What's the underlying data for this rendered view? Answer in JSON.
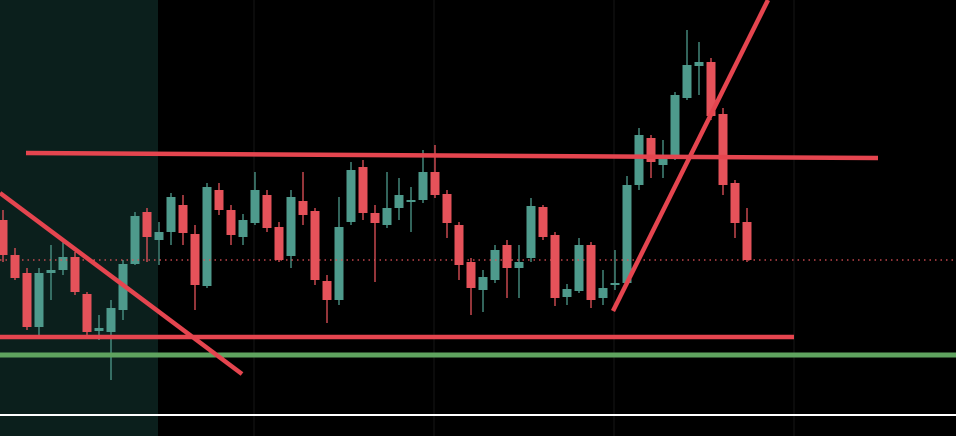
{
  "chart_data": {
    "type": "candlestick",
    "up_color": "#4e9a8c",
    "down_color": "#e5525a",
    "ylim": [
      0,
      436
    ],
    "open": [
      216,
      181,
      163,
      109,
      163,
      166,
      179,
      142,
      105,
      104,
      126,
      172,
      224,
      196,
      204,
      231,
      202,
      150,
      246,
      226,
      199,
      213,
      241,
      209,
      180,
      235,
      225,
      155,
      136,
      214,
      269,
      223,
      211,
      228,
      234,
      236,
      264,
      242,
      211,
      174,
      146,
      156,
      191,
      168,
      178,
      229,
      201,
      139,
      145,
      191,
      138,
      151,
      153,
      251,
      298,
      271,
      279,
      338,
      370,
      374,
      322,
      253,
      214
    ],
    "high": [
      226,
      188,
      168,
      168,
      191,
      198,
      184,
      144,
      121,
      136,
      176,
      224,
      228,
      214,
      243,
      241,
      211,
      253,
      253,
      231,
      222,
      264,
      246,
      214,
      246,
      264,
      228,
      161,
      239,
      274,
      276,
      231,
      264,
      258,
      249,
      286,
      291,
      246,
      214,
      178,
      166,
      191,
      196,
      191,
      238,
      231,
      204,
      152,
      198,
      194,
      166,
      186,
      260,
      308,
      301,
      296,
      344,
      406,
      394,
      378,
      328,
      256,
      228
    ],
    "low": [
      174,
      156,
      106,
      98,
      136,
      161,
      141,
      101,
      96,
      56,
      116,
      171,
      174,
      171,
      191,
      191,
      126,
      148,
      221,
      191,
      191,
      211,
      204,
      174,
      168,
      211,
      151,
      113,
      131,
      211,
      216,
      154,
      208,
      216,
      204,
      233,
      238,
      198,
      156,
      121,
      124,
      153,
      138,
      138,
      174,
      196,
      130,
      131,
      143,
      128,
      131,
      146,
      151,
      246,
      258,
      258,
      276,
      336,
      341,
      316,
      241,
      198,
      174
    ],
    "close": [
      181,
      158,
      109,
      163,
      166,
      179,
      144,
      104,
      108,
      128,
      172,
      220,
      199,
      204,
      239,
      203,
      151,
      249,
      226,
      201,
      216,
      246,
      208,
      176,
      239,
      221,
      156,
      136,
      209,
      266,
      223,
      213,
      228,
      241,
      236,
      264,
      241,
      213,
      171,
      148,
      159,
      186,
      168,
      174,
      230,
      199,
      138,
      147,
      191,
      136,
      148,
      153,
      251,
      301,
      274,
      279,
      341,
      371,
      374,
      320,
      251,
      213,
      176
    ]
  }
}
